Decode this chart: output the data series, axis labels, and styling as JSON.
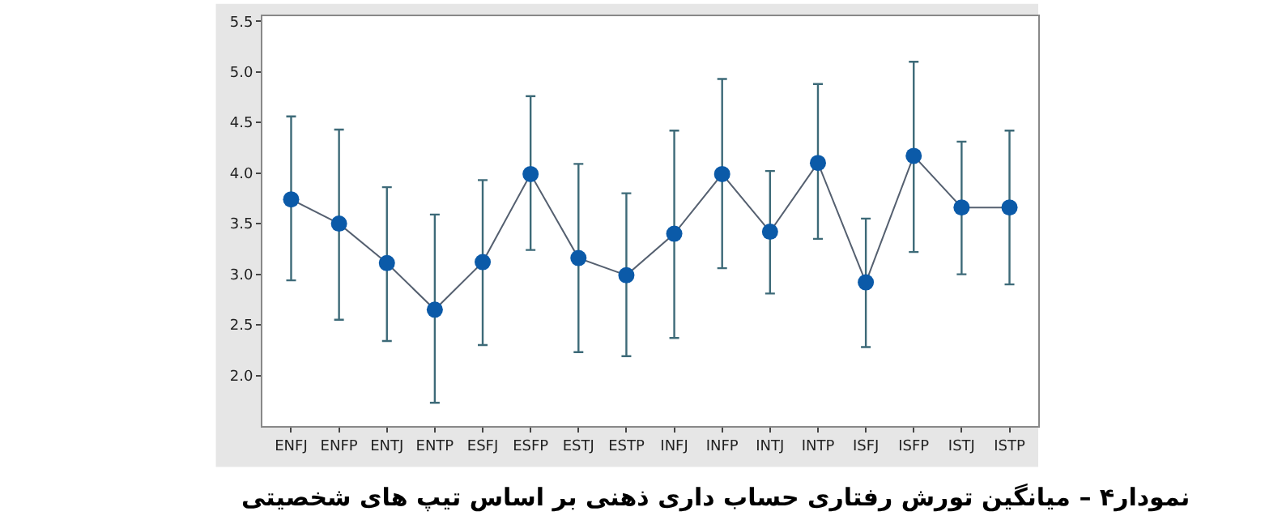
{
  "chart_data": {
    "type": "line",
    "title": "نمودار۴ – میانگین تورش رفتاری حساب داری ذهنی بر اساس تیپ های شخصیتی",
    "categories": [
      "ENFJ",
      "ENFP",
      "ENTJ",
      "ENTP",
      "ESFJ",
      "ESFP",
      "ESTJ",
      "ESTP",
      "INFJ",
      "INFP",
      "INTJ",
      "INTP",
      "ISFJ",
      "ISFP",
      "ISTJ",
      "ISTP"
    ],
    "series": [
      {
        "color": "#0b5aa8",
        "values": [
          3.74,
          3.5,
          3.11,
          2.65,
          3.12,
          3.99,
          3.16,
          2.99,
          3.4,
          3.99,
          3.42,
          4.1,
          2.92,
          4.17,
          3.66,
          3.66
        ],
        "errors": [
          [
            2.94,
            4.56
          ],
          [
            2.55,
            4.43
          ],
          [
            2.34,
            3.86
          ],
          [
            1.73,
            3.59
          ],
          [
            2.3,
            3.93
          ],
          [
            3.24,
            4.76
          ],
          [
            2.23,
            4.09
          ],
          [
            2.19,
            3.8
          ],
          [
            2.37,
            4.42
          ],
          [
            3.06,
            4.93
          ],
          [
            2.81,
            4.02
          ],
          [
            3.35,
            4.88
          ],
          [
            2.28,
            3.55
          ],
          [
            3.22,
            5.1
          ],
          [
            3.0,
            4.31
          ],
          [
            2.9,
            4.42
          ]
        ]
      }
    ],
    "ylim": [
      1.5,
      5.55
    ],
    "yticks": [
      {
        "value": 2,
        "label": "2.0"
      },
      2.5,
      {
        "value": 3,
        "label": "3.0"
      },
      3.5,
      {
        "value": 4,
        "label": "4.0"
      },
      4.5,
      {
        "value": 5,
        "label": "5.0"
      },
      5.5
    ],
    "marker": "circle",
    "line_style": "solid"
  }
}
